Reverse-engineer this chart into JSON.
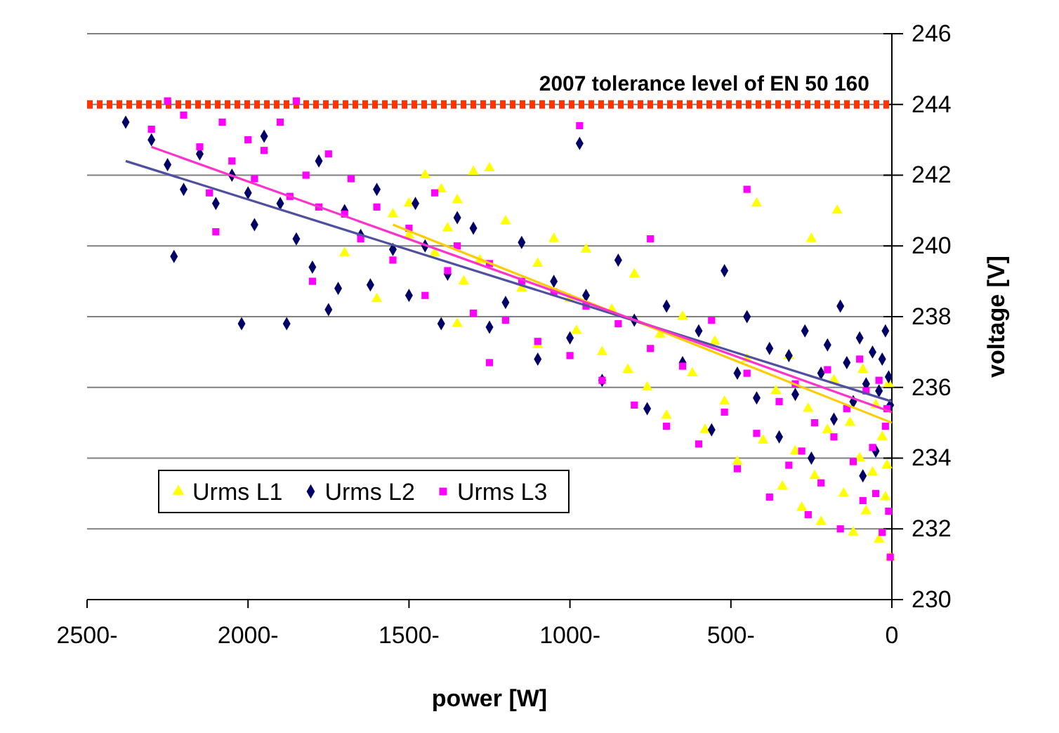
{
  "chart_data": {
    "type": "scatter",
    "xlabel": "power [W]",
    "ylabel": "voltage [V]",
    "xlim": [
      2500,
      0
    ],
    "xticks": [
      {
        "value": 2500,
        "label": "2500-"
      },
      {
        "value": 2000,
        "label": "2000-"
      },
      {
        "value": 1500,
        "label": "1500-"
      },
      {
        "value": 1000,
        "label": "1000-"
      },
      {
        "value": 500,
        "label": "500-"
      },
      0
    ],
    "ylim": [
      230,
      246
    ],
    "yticks": [
      230,
      232,
      234,
      236,
      238,
      240,
      242,
      244,
      246
    ],
    "grid": "y",
    "legend": "bottom left",
    "ref_lines": [
      {
        "axis": "y",
        "value": 244,
        "label": "2007 tolerance level of EN 50 160",
        "color": "#ff3300",
        "line_style": "dotted"
      }
    ],
    "series": [
      {
        "name": "Urms L1",
        "marker": "triangle",
        "color": "#ffff00",
        "x": [
          1550,
          1500,
          1450,
          1400,
          1350,
          1300,
          1250,
          1500,
          1420,
          1380,
          1330,
          1280,
          1200,
          1150,
          1100,
          1050,
          1000,
          980,
          950,
          900,
          870,
          820,
          800,
          760,
          720,
          700,
          650,
          620,
          580,
          550,
          520,
          480,
          450,
          420,
          400,
          360,
          340,
          320,
          300,
          280,
          260,
          240,
          220,
          200,
          180,
          170,
          150,
          130,
          120,
          100,
          90,
          80,
          60,
          50,
          40,
          30,
          20,
          10,
          5,
          15,
          1600,
          1700,
          1350,
          1100,
          250
        ],
        "values": [
          240.9,
          241.2,
          242.0,
          241.6,
          241.3,
          242.1,
          242.2,
          240.3,
          239.8,
          240.5,
          239.0,
          239.6,
          240.7,
          238.8,
          239.5,
          240.2,
          238.5,
          237.6,
          239.9,
          237.0,
          238.2,
          236.5,
          239.2,
          236.0,
          237.5,
          235.2,
          238.0,
          236.4,
          234.8,
          237.3,
          235.6,
          233.9,
          236.8,
          241.2,
          234.5,
          235.9,
          233.2,
          236.9,
          234.2,
          232.6,
          235.4,
          233.5,
          232.2,
          234.8,
          236.2,
          241.0,
          233.0,
          235.0,
          231.9,
          234.0,
          236.5,
          232.5,
          233.6,
          235.5,
          231.7,
          234.6,
          232.9,
          236.1,
          231.2,
          233.8,
          238.5,
          239.8,
          237.8,
          237.2,
          240.2
        ]
      },
      {
        "name": "Urms L2",
        "marker": "diamond",
        "color": "#000066",
        "x": [
          2380,
          2300,
          2250,
          2200,
          2230,
          2150,
          2100,
          2050,
          2000,
          1980,
          1950,
          1900,
          1880,
          1850,
          1800,
          1780,
          1750,
          1700,
          1650,
          1620,
          1600,
          1550,
          1500,
          1480,
          1450,
          1400,
          1380,
          1300,
          1250,
          1200,
          1150,
          1100,
          1050,
          1000,
          970,
          950,
          900,
          850,
          800,
          760,
          700,
          650,
          600,
          560,
          520,
          480,
          450,
          420,
          380,
          350,
          320,
          300,
          270,
          250,
          220,
          200,
          180,
          160,
          140,
          120,
          100,
          80,
          60,
          40,
          30,
          20,
          10,
          5,
          50,
          90,
          1350,
          2020,
          1720
        ],
        "values": [
          243.5,
          243.0,
          242.3,
          241.6,
          239.7,
          242.6,
          241.2,
          242.0,
          241.5,
          240.6,
          243.1,
          241.2,
          237.8,
          240.2,
          239.4,
          242.4,
          238.2,
          241.0,
          240.3,
          238.9,
          241.6,
          239.9,
          238.6,
          241.2,
          240.0,
          237.8,
          239.2,
          240.5,
          237.7,
          238.4,
          240.1,
          236.8,
          239.0,
          237.4,
          242.9,
          238.6,
          236.2,
          239.6,
          237.9,
          235.4,
          238.3,
          236.7,
          237.6,
          234.8,
          239.3,
          236.4,
          238.0,
          235.7,
          237.1,
          234.6,
          236.9,
          235.8,
          237.6,
          234.0,
          236.4,
          237.2,
          235.1,
          238.3,
          236.7,
          235.6,
          237.4,
          236.1,
          237.0,
          235.9,
          236.8,
          237.6,
          236.3,
          235.5,
          234.2,
          233.5,
          240.8,
          237.8,
          238.8
        ]
      },
      {
        "name": "Urms L3",
        "marker": "square",
        "color": "#ff00ff",
        "x": [
          2300,
          2250,
          2200,
          2150,
          2120,
          2080,
          2050,
          2000,
          1980,
          1950,
          1900,
          1870,
          1850,
          1820,
          1780,
          1750,
          1700,
          1680,
          1650,
          1600,
          1550,
          1500,
          1450,
          1420,
          1380,
          1350,
          1300,
          1250,
          1200,
          1150,
          1100,
          1050,
          1000,
          970,
          950,
          900,
          850,
          800,
          750,
          700,
          650,
          600,
          560,
          520,
          480,
          450,
          420,
          380,
          350,
          320,
          300,
          280,
          260,
          240,
          220,
          200,
          180,
          160,
          140,
          120,
          100,
          90,
          80,
          60,
          50,
          40,
          30,
          20,
          10,
          5,
          15,
          1800,
          2100,
          1250,
          450,
          750
        ],
        "values": [
          243.3,
          244.1,
          243.7,
          242.8,
          241.5,
          243.5,
          242.4,
          243.0,
          241.9,
          242.7,
          243.5,
          241.4,
          244.1,
          242.0,
          241.1,
          242.6,
          240.9,
          241.9,
          240.2,
          241.1,
          239.6,
          240.5,
          238.6,
          241.5,
          239.3,
          240.0,
          238.1,
          239.5,
          237.9,
          239.0,
          237.3,
          238.7,
          236.9,
          243.4,
          238.3,
          236.2,
          237.8,
          235.5,
          237.1,
          234.9,
          236.6,
          234.4,
          237.9,
          235.3,
          233.7,
          236.4,
          234.7,
          232.9,
          235.6,
          233.8,
          236.1,
          234.2,
          232.4,
          235.0,
          233.3,
          236.5,
          234.6,
          232.0,
          235.4,
          233.9,
          236.8,
          232.8,
          235.9,
          234.3,
          233.0,
          236.2,
          231.9,
          234.9,
          232.5,
          231.2,
          235.4,
          239.0,
          240.4,
          236.7,
          241.6,
          240.2
        ]
      },
      {
        "type": "line",
        "color": "#ffcc00",
        "x": [
          1550,
          0
        ],
        "values": [
          240.6,
          235.0
        ]
      },
      {
        "type": "line",
        "color": "#5050a0",
        "x": [
          2380,
          0
        ],
        "values": [
          242.4,
          235.6
        ]
      },
      {
        "type": "line",
        "color": "#ff33cc",
        "x": [
          2300,
          0
        ],
        "values": [
          242.8,
          235.3
        ]
      }
    ]
  }
}
